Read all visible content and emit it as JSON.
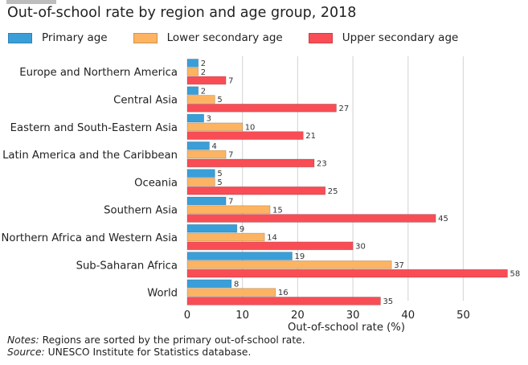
{
  "title": "Out-of-school rate by region and age group, 2018",
  "notes": {
    "notes_label": "Notes:",
    "notes_text": " Regions are sorted by the primary out-of-school rate.",
    "source_label": "Source:",
    "source_text": " UNESCO Institute for Statistics database."
  },
  "colors": {
    "primary": "#3a9fd8",
    "lower_secondary": "#fdb462",
    "upper_secondary": "#f94d56",
    "gridline": "#d9d9d9"
  },
  "chart_data": {
    "type": "bar",
    "orientation": "horizontal",
    "title": "Out-of-school rate by region and age group, 2018",
    "xlabel": "Out-of-school rate (%)",
    "ylabel": "",
    "xlim": [
      0,
      58
    ],
    "xticks": [
      0,
      10,
      20,
      30,
      40,
      50
    ],
    "grid": true,
    "legend_position": "top",
    "categories": [
      "Europe and Northern America",
      "Central Asia",
      "Eastern and South-Eastern Asia",
      "Latin America and the Caribbean",
      "Oceania",
      "Southern Asia",
      "Northern Africa and Western Asia",
      "Sub-Saharan Africa",
      "World"
    ],
    "series": [
      {
        "name": "Primary age",
        "color": "#3a9fd8",
        "values": [
          2,
          2,
          3,
          4,
          5,
          7,
          9,
          19,
          8
        ]
      },
      {
        "name": "Lower secondary age",
        "color": "#fdb462",
        "values": [
          2,
          5,
          10,
          7,
          5,
          15,
          14,
          37,
          16
        ]
      },
      {
        "name": "Upper secondary age",
        "color": "#f94d56",
        "values": [
          7,
          27,
          21,
          23,
          25,
          45,
          30,
          58,
          35
        ]
      }
    ]
  }
}
